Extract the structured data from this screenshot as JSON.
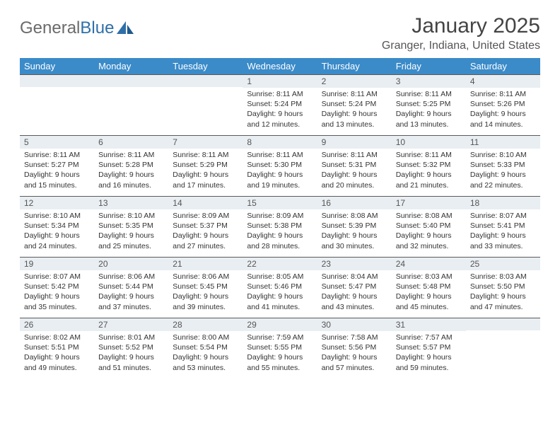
{
  "brand": {
    "part1": "General",
    "part2": "Blue"
  },
  "title": "January 2025",
  "location": "Granger, Indiana, United States",
  "colors": {
    "header_bg": "#3b8bc9",
    "header_text": "#ffffff",
    "daynum_bg": "#e9eef2",
    "border": "#5a5a5a",
    "logo_gray": "#6b6b6b",
    "logo_blue": "#2f6fa8"
  },
  "day_names": [
    "Sunday",
    "Monday",
    "Tuesday",
    "Wednesday",
    "Thursday",
    "Friday",
    "Saturday"
  ],
  "weeks": [
    [
      {
        "n": "",
        "sr": "",
        "ss": "",
        "dl": ""
      },
      {
        "n": "",
        "sr": "",
        "ss": "",
        "dl": ""
      },
      {
        "n": "",
        "sr": "",
        "ss": "",
        "dl": ""
      },
      {
        "n": "1",
        "sr": "Sunrise: 8:11 AM",
        "ss": "Sunset: 5:24 PM",
        "dl": "Daylight: 9 hours and 12 minutes."
      },
      {
        "n": "2",
        "sr": "Sunrise: 8:11 AM",
        "ss": "Sunset: 5:24 PM",
        "dl": "Daylight: 9 hours and 13 minutes."
      },
      {
        "n": "3",
        "sr": "Sunrise: 8:11 AM",
        "ss": "Sunset: 5:25 PM",
        "dl": "Daylight: 9 hours and 13 minutes."
      },
      {
        "n": "4",
        "sr": "Sunrise: 8:11 AM",
        "ss": "Sunset: 5:26 PM",
        "dl": "Daylight: 9 hours and 14 minutes."
      }
    ],
    [
      {
        "n": "5",
        "sr": "Sunrise: 8:11 AM",
        "ss": "Sunset: 5:27 PM",
        "dl": "Daylight: 9 hours and 15 minutes."
      },
      {
        "n": "6",
        "sr": "Sunrise: 8:11 AM",
        "ss": "Sunset: 5:28 PM",
        "dl": "Daylight: 9 hours and 16 minutes."
      },
      {
        "n": "7",
        "sr": "Sunrise: 8:11 AM",
        "ss": "Sunset: 5:29 PM",
        "dl": "Daylight: 9 hours and 17 minutes."
      },
      {
        "n": "8",
        "sr": "Sunrise: 8:11 AM",
        "ss": "Sunset: 5:30 PM",
        "dl": "Daylight: 9 hours and 19 minutes."
      },
      {
        "n": "9",
        "sr": "Sunrise: 8:11 AM",
        "ss": "Sunset: 5:31 PM",
        "dl": "Daylight: 9 hours and 20 minutes."
      },
      {
        "n": "10",
        "sr": "Sunrise: 8:11 AM",
        "ss": "Sunset: 5:32 PM",
        "dl": "Daylight: 9 hours and 21 minutes."
      },
      {
        "n": "11",
        "sr": "Sunrise: 8:10 AM",
        "ss": "Sunset: 5:33 PM",
        "dl": "Daylight: 9 hours and 22 minutes."
      }
    ],
    [
      {
        "n": "12",
        "sr": "Sunrise: 8:10 AM",
        "ss": "Sunset: 5:34 PM",
        "dl": "Daylight: 9 hours and 24 minutes."
      },
      {
        "n": "13",
        "sr": "Sunrise: 8:10 AM",
        "ss": "Sunset: 5:35 PM",
        "dl": "Daylight: 9 hours and 25 minutes."
      },
      {
        "n": "14",
        "sr": "Sunrise: 8:09 AM",
        "ss": "Sunset: 5:37 PM",
        "dl": "Daylight: 9 hours and 27 minutes."
      },
      {
        "n": "15",
        "sr": "Sunrise: 8:09 AM",
        "ss": "Sunset: 5:38 PM",
        "dl": "Daylight: 9 hours and 28 minutes."
      },
      {
        "n": "16",
        "sr": "Sunrise: 8:08 AM",
        "ss": "Sunset: 5:39 PM",
        "dl": "Daylight: 9 hours and 30 minutes."
      },
      {
        "n": "17",
        "sr": "Sunrise: 8:08 AM",
        "ss": "Sunset: 5:40 PM",
        "dl": "Daylight: 9 hours and 32 minutes."
      },
      {
        "n": "18",
        "sr": "Sunrise: 8:07 AM",
        "ss": "Sunset: 5:41 PM",
        "dl": "Daylight: 9 hours and 33 minutes."
      }
    ],
    [
      {
        "n": "19",
        "sr": "Sunrise: 8:07 AM",
        "ss": "Sunset: 5:42 PM",
        "dl": "Daylight: 9 hours and 35 minutes."
      },
      {
        "n": "20",
        "sr": "Sunrise: 8:06 AM",
        "ss": "Sunset: 5:44 PM",
        "dl": "Daylight: 9 hours and 37 minutes."
      },
      {
        "n": "21",
        "sr": "Sunrise: 8:06 AM",
        "ss": "Sunset: 5:45 PM",
        "dl": "Daylight: 9 hours and 39 minutes."
      },
      {
        "n": "22",
        "sr": "Sunrise: 8:05 AM",
        "ss": "Sunset: 5:46 PM",
        "dl": "Daylight: 9 hours and 41 minutes."
      },
      {
        "n": "23",
        "sr": "Sunrise: 8:04 AM",
        "ss": "Sunset: 5:47 PM",
        "dl": "Daylight: 9 hours and 43 minutes."
      },
      {
        "n": "24",
        "sr": "Sunrise: 8:03 AM",
        "ss": "Sunset: 5:48 PM",
        "dl": "Daylight: 9 hours and 45 minutes."
      },
      {
        "n": "25",
        "sr": "Sunrise: 8:03 AM",
        "ss": "Sunset: 5:50 PM",
        "dl": "Daylight: 9 hours and 47 minutes."
      }
    ],
    [
      {
        "n": "26",
        "sr": "Sunrise: 8:02 AM",
        "ss": "Sunset: 5:51 PM",
        "dl": "Daylight: 9 hours and 49 minutes."
      },
      {
        "n": "27",
        "sr": "Sunrise: 8:01 AM",
        "ss": "Sunset: 5:52 PM",
        "dl": "Daylight: 9 hours and 51 minutes."
      },
      {
        "n": "28",
        "sr": "Sunrise: 8:00 AM",
        "ss": "Sunset: 5:54 PM",
        "dl": "Daylight: 9 hours and 53 minutes."
      },
      {
        "n": "29",
        "sr": "Sunrise: 7:59 AM",
        "ss": "Sunset: 5:55 PM",
        "dl": "Daylight: 9 hours and 55 minutes."
      },
      {
        "n": "30",
        "sr": "Sunrise: 7:58 AM",
        "ss": "Sunset: 5:56 PM",
        "dl": "Daylight: 9 hours and 57 minutes."
      },
      {
        "n": "31",
        "sr": "Sunrise: 7:57 AM",
        "ss": "Sunset: 5:57 PM",
        "dl": "Daylight: 9 hours and 59 minutes."
      },
      {
        "n": "",
        "sr": "",
        "ss": "",
        "dl": ""
      }
    ]
  ]
}
